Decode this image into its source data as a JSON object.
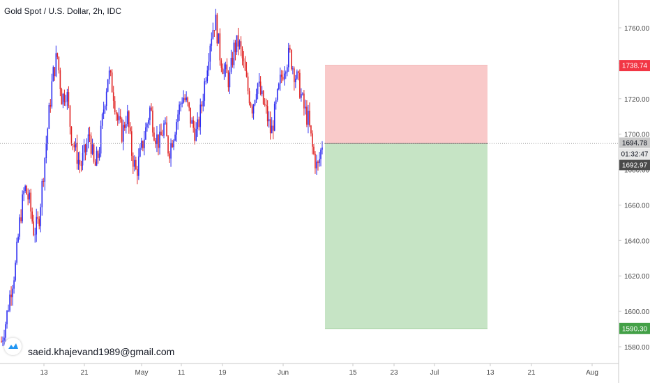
{
  "header": {
    "title": "Gold Spot / U.S. Dollar, 2h, IDC"
  },
  "watermark": {
    "author": "saeid.khajevand1989@gmail.com"
  },
  "chart_data": {
    "type": "candlestick",
    "title": "Gold Spot / U.S. Dollar, 2h, IDC",
    "ylim": [
      1570,
      1778
    ],
    "y_ticks": [
      "1580.00",
      "1600.00",
      "1620.00",
      "1640.00",
      "1660.00",
      "1680.00",
      "1700.00",
      "1720.00",
      "1740.00",
      "1760.00"
    ],
    "x_ticks": [
      "13",
      "21",
      "May",
      "11",
      "19",
      "Jun",
      "15",
      "23",
      "Jul",
      "13",
      "21",
      "Aug"
    ],
    "price_path": [
      [
        "",
        1583
      ],
      [
        "",
        1595
      ],
      [
        "",
        1612
      ],
      [
        "",
        1625
      ],
      [
        "",
        1652
      ],
      [
        "",
        1670
      ],
      [
        "",
        1662
      ],
      [
        "",
        1645
      ],
      [
        "",
        1650
      ],
      [
        "",
        1678
      ],
      [
        "",
        1705
      ],
      [
        "",
        1732
      ],
      [
        "",
        1745
      ],
      [
        "",
        1720
      ],
      [
        "",
        1725
      ],
      [
        "",
        1700
      ],
      [
        "",
        1690
      ],
      [
        "",
        1682
      ],
      [
        "",
        1690
      ],
      [
        "",
        1700
      ],
      [
        "",
        1680
      ],
      [
        "",
        1690
      ],
      [
        "",
        1715
      ],
      [
        "",
        1735
      ],
      [
        "",
        1725
      ],
      [
        "",
        1708
      ],
      [
        "",
        1700
      ],
      [
        "",
        1712
      ],
      [
        "",
        1690
      ],
      [
        "",
        1678
      ],
      [
        "",
        1690
      ],
      [
        "",
        1702
      ],
      [
        "",
        1715
      ],
      [
        "",
        1700
      ],
      [
        "",
        1695
      ],
      [
        "",
        1705
      ],
      [
        "",
        1690
      ],
      [
        "",
        1700
      ],
      [
        "",
        1712
      ],
      [
        "",
        1722
      ],
      [
        "",
        1716
      ],
      [
        "",
        1705
      ],
      [
        "",
        1700
      ],
      [
        "",
        1715
      ],
      [
        "",
        1735
      ],
      [
        "",
        1755
      ],
      [
        "",
        1765
      ],
      [
        "",
        1745
      ],
      [
        "",
        1735
      ],
      [
        "",
        1730
      ],
      [
        "",
        1748
      ],
      [
        "",
        1752
      ],
      [
        "",
        1740
      ],
      [
        "",
        1725
      ],
      [
        "",
        1715
      ],
      [
        "",
        1730
      ],
      [
        "",
        1720
      ],
      [
        "",
        1712
      ],
      [
        "",
        1700
      ],
      [
        "",
        1715
      ],
      [
        "",
        1730
      ],
      [
        "",
        1740
      ],
      [
        "",
        1745
      ],
      [
        "",
        1735
      ],
      [
        "",
        1728
      ],
      [
        "",
        1715
      ],
      [
        "",
        1708
      ],
      [
        "",
        1690
      ],
      [
        "",
        1680
      ],
      [
        "",
        1695
      ]
    ],
    "last_price": 1694.78,
    "current_price": 1692.97,
    "countdown": "01:32:47",
    "position": {
      "entry": 1694.78,
      "stop": 1738.74,
      "target": 1590.3
    },
    "colors": {
      "up": "#2d2df0",
      "down": "#e02525",
      "stop_zone": "#f9c9c9",
      "target_zone": "#c6e4c5",
      "stop_label": "#f23645",
      "target_label": "#43a047",
      "entry_label": "#c8c8c8",
      "current_label": "#4a4a4a",
      "countdown_label": "#e8e8e8"
    }
  }
}
